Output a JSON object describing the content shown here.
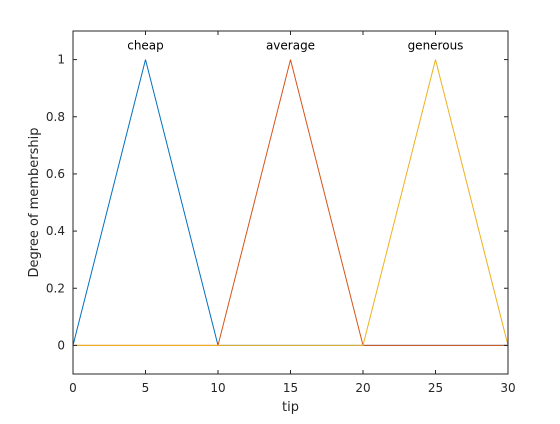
{
  "chart_data": {
    "type": "line",
    "title": "",
    "xlabel": "tip",
    "ylabel": "Degree of membership",
    "xlim": [
      0,
      30
    ],
    "ylim": [
      -0.1,
      1.1
    ],
    "xticks": [
      0,
      5,
      10,
      15,
      20,
      25,
      30
    ],
    "yticks": [
      0,
      0.2,
      0.4,
      0.6,
      0.8,
      1
    ],
    "ytick_labels": [
      "0",
      "0.2",
      "0.4",
      "0.6",
      "0.8",
      "1"
    ],
    "grid": false,
    "series": [
      {
        "name": "cheap",
        "color": "#0072BD",
        "x": [
          0,
          5,
          10,
          30
        ],
        "y": [
          0,
          1,
          0,
          0
        ]
      },
      {
        "name": "average",
        "color": "#D95319",
        "x": [
          0,
          10,
          15,
          20,
          30
        ],
        "y": [
          0,
          0,
          1,
          0,
          0
        ]
      },
      {
        "name": "generous",
        "color": "#EDB120",
        "x": [
          0,
          20,
          25,
          30
        ],
        "y": [
          0,
          0,
          1,
          0
        ]
      }
    ],
    "annotations": [
      {
        "text": "cheap",
        "x": 5,
        "y": 1
      },
      {
        "text": "average",
        "x": 15,
        "y": 1
      },
      {
        "text": "generous",
        "x": 25,
        "y": 1
      }
    ]
  }
}
